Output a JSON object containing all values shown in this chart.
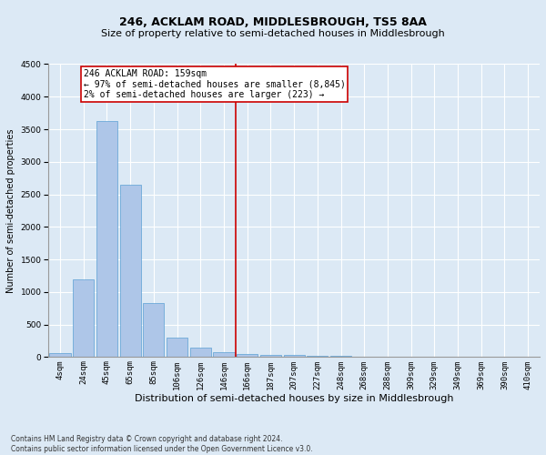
{
  "title": "246, ACKLAM ROAD, MIDDLESBROUGH, TS5 8AA",
  "subtitle": "Size of property relative to semi-detached houses in Middlesbrough",
  "xlabel": "Distribution of semi-detached houses by size in Middlesbrough",
  "ylabel": "Number of semi-detached properties",
  "footer_line1": "Contains HM Land Registry data © Crown copyright and database right 2024.",
  "footer_line2": "Contains public sector information licensed under the Open Government Licence v3.0.",
  "categories": [
    "4sqm",
    "24sqm",
    "45sqm",
    "65sqm",
    "85sqm",
    "106sqm",
    "126sqm",
    "146sqm",
    "166sqm",
    "187sqm",
    "207sqm",
    "227sqm",
    "248sqm",
    "268sqm",
    "288sqm",
    "309sqm",
    "329sqm",
    "349sqm",
    "369sqm",
    "390sqm",
    "410sqm"
  ],
  "values": [
    65,
    1200,
    3625,
    2650,
    830,
    305,
    140,
    80,
    50,
    35,
    30,
    20,
    15,
    10,
    8,
    6,
    5,
    4,
    3,
    2,
    2
  ],
  "bar_color": "#aec6e8",
  "bar_edge_color": "#5a9fd4",
  "vline_color": "#cc0000",
  "annotation_text": "246 ACKLAM ROAD: 159sqm\n← 97% of semi-detached houses are smaller (8,845)\n2% of semi-detached houses are larger (223) →",
  "annotation_box_edge": "#cc0000",
  "annotation_box_face": "#ffffff",
  "ylim": [
    0,
    4500
  ],
  "background_color": "#dce9f5",
  "plot_background": "#dce9f5",
  "grid_color": "#ffffff",
  "title_fontsize": 9,
  "subtitle_fontsize": 8,
  "tick_fontsize": 6.5,
  "ylabel_fontsize": 7,
  "xlabel_fontsize": 8,
  "annotation_fontsize": 7,
  "footer_fontsize": 5.5
}
